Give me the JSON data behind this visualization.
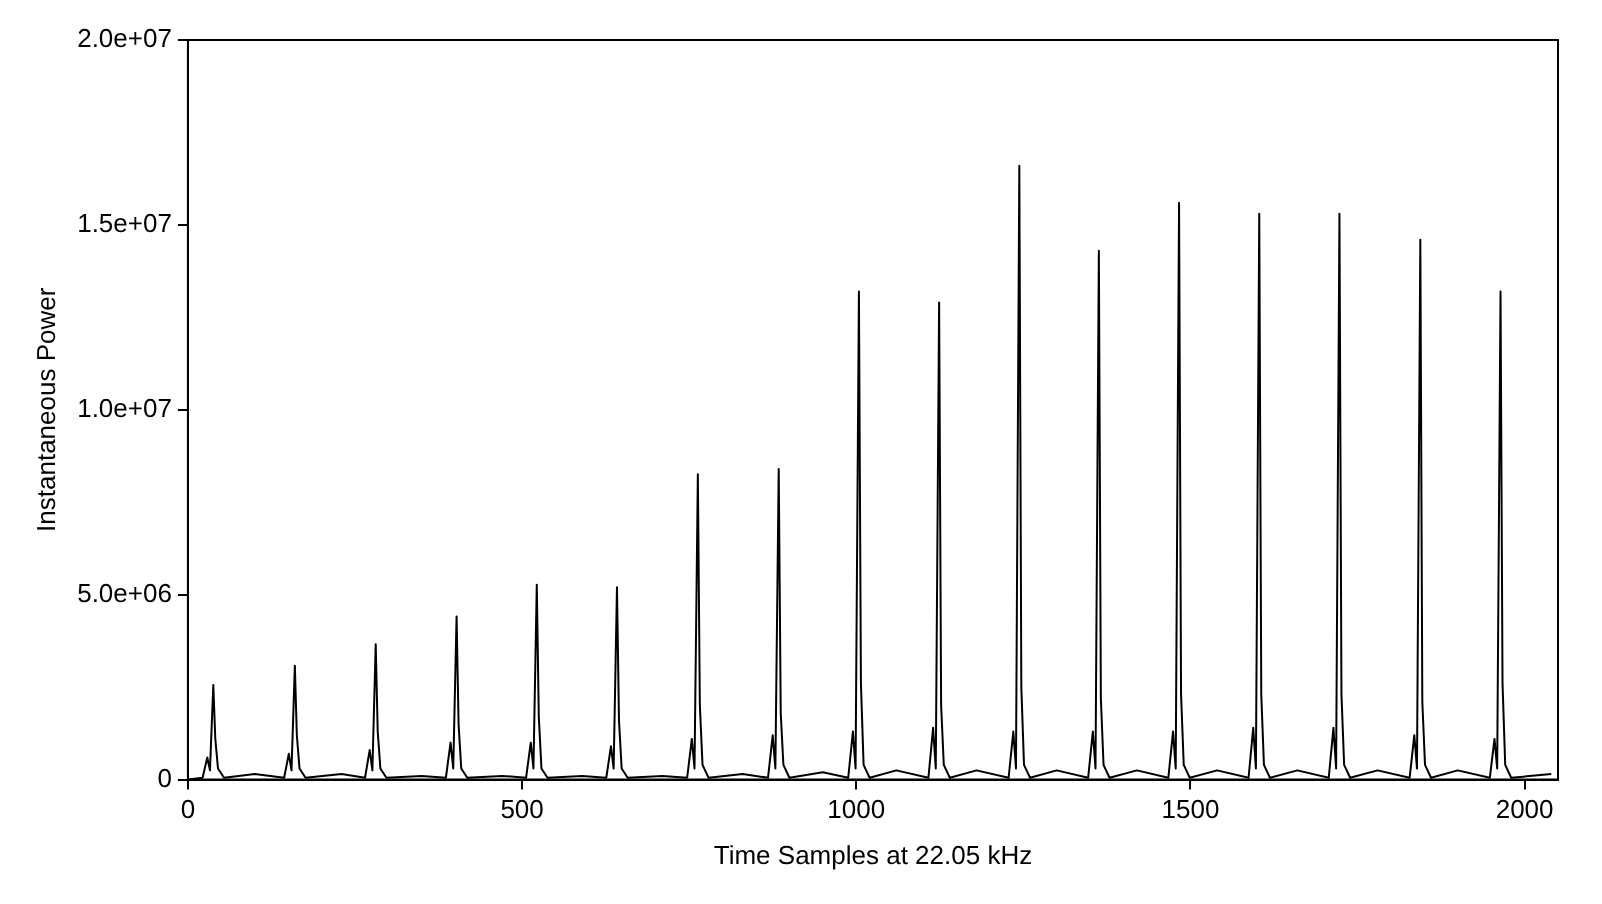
{
  "chart_data": {
    "type": "line",
    "xlabel": "Time Samples at 22.05 kHz",
    "ylabel": "Instantaneous Power",
    "xlim": [
      0,
      2050
    ],
    "xticks": [
      0,
      500,
      1000,
      1500,
      2000
    ],
    "ylim": [
      0,
      20000000
    ],
    "yticks": [
      0,
      {
        "value": 5000000,
        "label": "5.0e+06"
      },
      {
        "value": 10000000,
        "label": "1.0e+07"
      },
      {
        "value": 15000000,
        "label": "1.5e+07"
      },
      {
        "value": 20000000,
        "label": "2.0e+07"
      }
    ],
    "grid": false,
    "legend": false,
    "marker": "none",
    "line_style": "solid",
    "series": [
      {
        "color": "#000000",
        "x": [
          0,
          22,
          29,
          33,
          38,
          41,
          45,
          54,
          100,
          144,
          151,
          155,
          160,
          163,
          167,
          176,
          230,
          265,
          272,
          276,
          281,
          284,
          288,
          297,
          350,
          386,
          393,
          397,
          402,
          405,
          409,
          418,
          470,
          506,
          513,
          517,
          522,
          525,
          529,
          538,
          590,
          626,
          633,
          637,
          642,
          645,
          649,
          658,
          710,
          747,
          754,
          758,
          763,
          766,
          770,
          779,
          830,
          868,
          875,
          879,
          884,
          887,
          891,
          900,
          950,
          988,
          995,
          999,
          1004,
          1007,
          1011,
          1020,
          1060,
          1108,
          1115,
          1119,
          1124,
          1127,
          1131,
          1140,
          1180,
          1228,
          1235,
          1239,
          1244,
          1247,
          1251,
          1260,
          1300,
          1347,
          1354,
          1358,
          1363,
          1366,
          1370,
          1379,
          1420,
          1467,
          1474,
          1478,
          1483,
          1486,
          1490,
          1499,
          1540,
          1587,
          1594,
          1598,
          1603,
          1606,
          1610,
          1619,
          1660,
          1707,
          1714,
          1718,
          1723,
          1726,
          1730,
          1739,
          1780,
          1828,
          1835,
          1839,
          1844,
          1847,
          1851,
          1860,
          1900,
          1948,
          1955,
          1959,
          1964,
          1967,
          1971,
          1980,
          2040
        ],
        "values": [
          0,
          50000,
          600000,
          250000,
          2560000,
          1100000,
          300000,
          50000,
          150000,
          50000,
          700000,
          250000,
          3080000,
          1200000,
          300000,
          50000,
          150000,
          50000,
          800000,
          250000,
          3660000,
          1300000,
          300000,
          50000,
          100000,
          50000,
          1000000,
          300000,
          4410000,
          1500000,
          300000,
          50000,
          100000,
          50000,
          1000000,
          300000,
          5270000,
          1700000,
          300000,
          50000,
          100000,
          50000,
          900000,
          300000,
          5200000,
          1600000,
          300000,
          50000,
          100000,
          50000,
          1100000,
          300000,
          8260000,
          2000000,
          400000,
          50000,
          150000,
          50000,
          1200000,
          300000,
          8400000,
          1800000,
          400000,
          50000,
          200000,
          50000,
          1300000,
          300000,
          13200000,
          2600000,
          400000,
          50000,
          250000,
          50000,
          1400000,
          300000,
          12900000,
          2000000,
          400000,
          50000,
          250000,
          50000,
          1300000,
          300000,
          16600000,
          2500000,
          400000,
          50000,
          250000,
          50000,
          1300000,
          300000,
          14300000,
          2200000,
          400000,
          50000,
          250000,
          50000,
          1300000,
          300000,
          15600000,
          2300000,
          400000,
          50000,
          250000,
          50000,
          1400000,
          300000,
          15300000,
          2300000,
          400000,
          50000,
          250000,
          50000,
          1400000,
          300000,
          15300000,
          2300000,
          400000,
          50000,
          250000,
          50000,
          1200000,
          300000,
          14600000,
          2100000,
          400000,
          50000,
          250000,
          50000,
          1100000,
          300000,
          13200000,
          2600000,
          400000,
          50000,
          150000
        ]
      }
    ]
  }
}
